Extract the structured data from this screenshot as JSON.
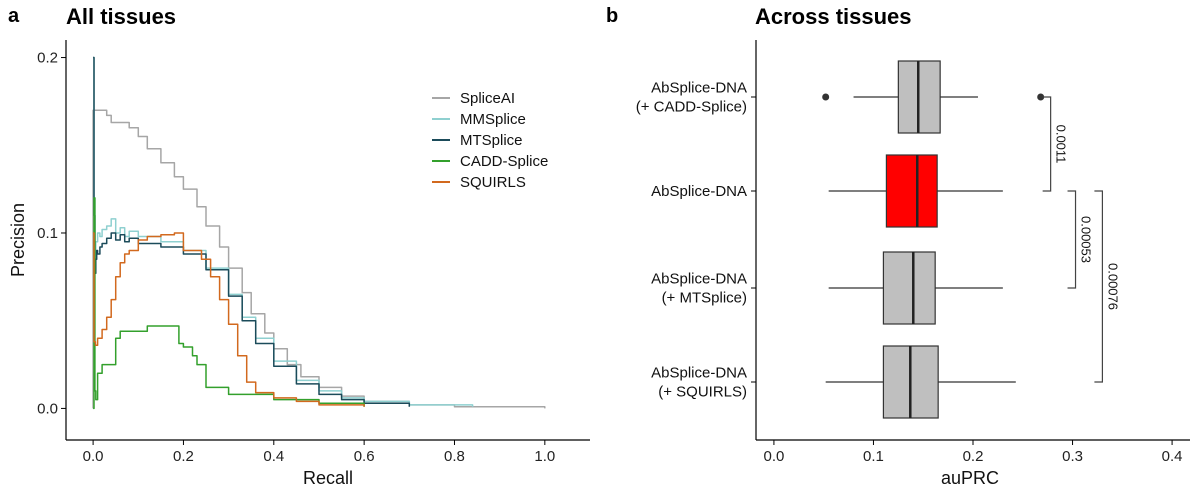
{
  "panel_a": {
    "letter": "a",
    "title": "All tissues"
  },
  "panel_b": {
    "letter": "b",
    "title": "Across tissues"
  },
  "chart_data": [
    {
      "type": "line",
      "title": "All tissues",
      "xlabel": "Recall",
      "ylabel": "Precision",
      "xlim": [
        -0.06,
        1.1
      ],
      "ylim": [
        -0.018,
        0.21
      ],
      "xticks": [
        0.0,
        0.2,
        0.4,
        0.6,
        0.8,
        1.0
      ],
      "xtick_labels": [
        "0.0",
        "0.2",
        "0.4",
        "0.6",
        "0.8",
        "1.0"
      ],
      "yticks": [
        0.0,
        0.1,
        0.2
      ],
      "ytick_labels": [
        "0.0",
        "0.1",
        "0.2"
      ],
      "grid": false,
      "legend_position": "top-right",
      "series": [
        {
          "name": "SpliceAI",
          "color": "#a6a6a6",
          "x": [
            0,
            0,
            0.003,
            0.03,
            0.04,
            0.07,
            0.08,
            0.1,
            0.12,
            0.15,
            0.18,
            0.2,
            0.23,
            0.25,
            0.28,
            0.3,
            0.33,
            0.35,
            0.38,
            0.4,
            0.43,
            0.46,
            0.5,
            0.55,
            0.6,
            0.7,
            0.8,
            1.0
          ],
          "y": [
            0,
            0.17,
            0.17,
            0.167,
            0.163,
            0.163,
            0.16,
            0.155,
            0.148,
            0.14,
            0.132,
            0.125,
            0.115,
            0.104,
            0.092,
            0.08,
            0.066,
            0.054,
            0.043,
            0.034,
            0.025,
            0.018,
            0.012,
            0.007,
            0.004,
            0.002,
            0.001,
            0.0
          ]
        },
        {
          "name": "MMSplice",
          "color": "#8fd0d0",
          "x": [
            0,
            0.002,
            0.004,
            0.006,
            0.01,
            0.015,
            0.02,
            0.03,
            0.04,
            0.05,
            0.06,
            0.07,
            0.08,
            0.1,
            0.15,
            0.2,
            0.25,
            0.3,
            0.33,
            0.36,
            0.4,
            0.45,
            0.5,
            0.55,
            0.6,
            0.7,
            0.84
          ],
          "y": [
            0.2,
            0.12,
            0.085,
            0.095,
            0.1,
            0.098,
            0.102,
            0.104,
            0.108,
            0.1,
            0.103,
            0.098,
            0.101,
            0.098,
            0.095,
            0.09,
            0.08,
            0.065,
            0.052,
            0.04,
            0.027,
            0.016,
            0.01,
            0.006,
            0.004,
            0.002,
            0.001
          ]
        },
        {
          "name": "MTSplice",
          "color": "#1b4b5a",
          "x": [
            0,
            0.002,
            0.004,
            0.006,
            0.008,
            0.01,
            0.015,
            0.02,
            0.03,
            0.04,
            0.05,
            0.06,
            0.07,
            0.08,
            0.1,
            0.15,
            0.2,
            0.25,
            0.3,
            0.33,
            0.36,
            0.4,
            0.45,
            0.5,
            0.55,
            0.6,
            0.7
          ],
          "y": [
            0.2,
            0.11,
            0.077,
            0.085,
            0.09,
            0.088,
            0.092,
            0.094,
            0.097,
            0.1,
            0.096,
            0.099,
            0.095,
            0.097,
            0.094,
            0.092,
            0.088,
            0.079,
            0.064,
            0.05,
            0.037,
            0.024,
            0.014,
            0.008,
            0.005,
            0.003,
            0.001
          ]
        },
        {
          "name": "CADD-Splice",
          "color": "#33a02c",
          "x": [
            0,
            0.002,
            0.004,
            0.006,
            0.01,
            0.02,
            0.05,
            0.06,
            0.1,
            0.12,
            0.15,
            0.18,
            0.19,
            0.2,
            0.22,
            0.23,
            0.25,
            0.3,
            0.4,
            0.5,
            0.6
          ],
          "y": [
            0,
            0.12,
            0.01,
            0.005,
            0.02,
            0.025,
            0.04,
            0.044,
            0.044,
            0.047,
            0.047,
            0.047,
            0.037,
            0.035,
            0.03,
            0.025,
            0.012,
            0.008,
            0.005,
            0.003,
            0.001
          ]
        },
        {
          "name": "SQUIRLS",
          "color": "#d2691e",
          "x": [
            0,
            0.002,
            0.005,
            0.01,
            0.02,
            0.03,
            0.04,
            0.05,
            0.06,
            0.07,
            0.08,
            0.1,
            0.12,
            0.15,
            0.18,
            0.2,
            0.24,
            0.26,
            0.28,
            0.3,
            0.32,
            0.34,
            0.36,
            0.4,
            0.45,
            0.5,
            0.6
          ],
          "y": [
            0.1,
            0.038,
            0.036,
            0.04,
            0.045,
            0.052,
            0.062,
            0.075,
            0.083,
            0.088,
            0.09,
            0.096,
            0.098,
            0.099,
            0.1,
            0.09,
            0.085,
            0.075,
            0.062,
            0.048,
            0.03,
            0.015,
            0.009,
            0.006,
            0.004,
            0.002,
            0.001
          ]
        }
      ]
    },
    {
      "type": "box",
      "title": "Across tissues",
      "xlabel": "auPRC",
      "ylabel": "",
      "xlim": [
        -0.018,
        0.418
      ],
      "xticks": [
        0.0,
        0.1,
        0.2,
        0.3,
        0.4
      ],
      "xtick_labels": [
        "0.0",
        "0.1",
        "0.2",
        "0.3",
        "0.4"
      ],
      "grid": false,
      "boxes": [
        {
          "label_lines": [
            "AbSplice-DNA",
            "(+ CADD-Splice)"
          ],
          "whisker_low": 0.08,
          "q1": 0.125,
          "median": 0.145,
          "q3": 0.167,
          "whisker_high": 0.205,
          "outliers": [
            0.052,
            0.268
          ],
          "fill": "#bfbfbf"
        },
        {
          "label_lines": [
            "AbSplice-DNA"
          ],
          "whisker_low": 0.055,
          "q1": 0.113,
          "median": 0.144,
          "q3": 0.164,
          "whisker_high": 0.23,
          "outliers": [],
          "fill": "#ff0000"
        },
        {
          "label_lines": [
            "AbSplice-DNA",
            "(+ MTSplice)"
          ],
          "whisker_low": 0.055,
          "q1": 0.11,
          "median": 0.14,
          "q3": 0.162,
          "whisker_high": 0.23,
          "outliers": [],
          "fill": "#bfbfbf"
        },
        {
          "label_lines": [
            "AbSplice-DNA",
            "(+ SQUIRLS)"
          ],
          "whisker_low": 0.052,
          "q1": 0.11,
          "median": 0.137,
          "q3": 0.165,
          "whisker_high": 0.243,
          "outliers": [],
          "fill": "#bfbfbf"
        }
      ],
      "comparisons": [
        {
          "from": 0,
          "to": 1,
          "x": 0.278,
          "p_value": "0.0011"
        },
        {
          "from": 1,
          "to": 2,
          "x": 0.303,
          "p_value": "0.00053"
        },
        {
          "from": 1,
          "to": 3,
          "x": 0.33,
          "p_value": "0.00076"
        }
      ]
    }
  ]
}
